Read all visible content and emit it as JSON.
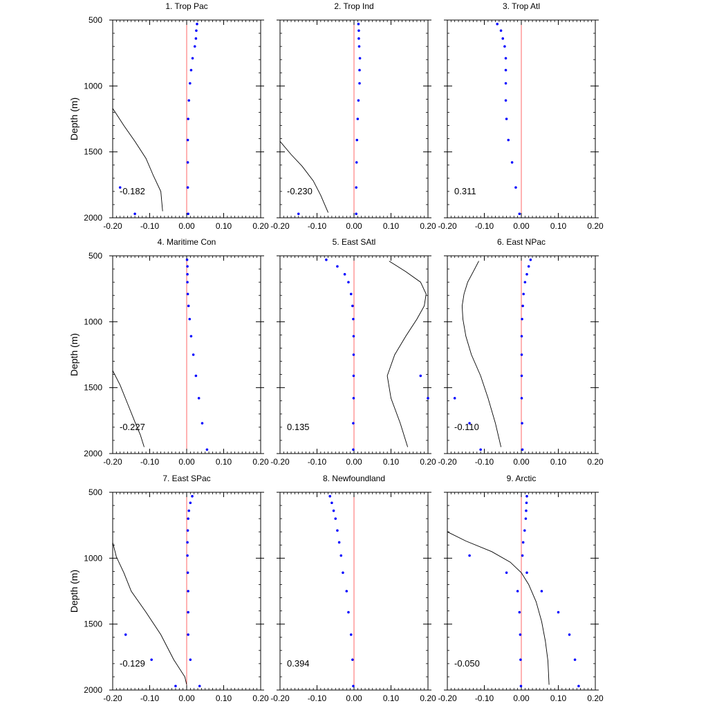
{
  "figure": {
    "ylabel": "Depth (m)",
    "xticks": [
      -0.2,
      -0.1,
      0.0,
      0.1,
      0.2
    ],
    "xtick_labels": [
      "-0.20",
      "-0.10",
      "0.00",
      "0.10",
      "0.20"
    ],
    "yticks": [
      500,
      1000,
      1500,
      2000
    ],
    "ytick_labels": [
      "500",
      "1000",
      "1500",
      "2000"
    ],
    "xlim": [
      -0.2,
      0.2
    ],
    "ylim": [
      2000,
      500
    ],
    "zero_line_color": "#ff6666",
    "dot_color": "#0000ff",
    "line_color": "#000000"
  },
  "chart_data": [
    {
      "type": "scatter",
      "title": "1. Trop Pac",
      "annotation": "-0.182",
      "xlim": [
        -0.2,
        0.2
      ],
      "ylim": [
        2000,
        500
      ],
      "dots": [
        [
          0.028,
          530
        ],
        [
          0.026,
          580
        ],
        [
          0.025,
          640
        ],
        [
          0.022,
          700
        ],
        [
          0.016,
          790
        ],
        [
          0.012,
          880
        ],
        [
          0.009,
          980
        ],
        [
          0.006,
          1110
        ],
        [
          0.004,
          1250
        ],
        [
          0.003,
          1410
        ],
        [
          0.003,
          1580
        ],
        [
          0.003,
          1770
        ],
        [
          -0.18,
          1770
        ],
        [
          -0.14,
          1970
        ],
        [
          0.004,
          1970
        ]
      ],
      "curve": [
        [
          -0.2,
          1170
        ],
        [
          -0.17,
          1300
        ],
        [
          -0.14,
          1420
        ],
        [
          -0.11,
          1550
        ],
        [
          -0.09,
          1680
        ],
        [
          -0.07,
          1800
        ],
        [
          -0.065,
          1950
        ]
      ]
    },
    {
      "type": "scatter",
      "title": "2. Trop Ind",
      "annotation": "-0.230",
      "xlim": [
        -0.2,
        0.2
      ],
      "ylim": [
        2000,
        500
      ],
      "dots": [
        [
          0.012,
          530
        ],
        [
          0.013,
          580
        ],
        [
          0.013,
          640
        ],
        [
          0.014,
          700
        ],
        [
          0.016,
          790
        ],
        [
          0.015,
          880
        ],
        [
          0.015,
          980
        ],
        [
          0.012,
          1110
        ],
        [
          0.01,
          1250
        ],
        [
          0.008,
          1410
        ],
        [
          0.007,
          1580
        ],
        [
          0.006,
          1770
        ],
        [
          -0.15,
          1970
        ],
        [
          0.006,
          1970
        ]
      ],
      "curve": [
        [
          -0.2,
          1420
        ],
        [
          -0.17,
          1520
        ],
        [
          -0.14,
          1610
        ],
        [
          -0.11,
          1720
        ],
        [
          -0.09,
          1830
        ],
        [
          -0.07,
          1960
        ]
      ]
    },
    {
      "type": "scatter",
      "title": "3. Trop Atl",
      "annotation": "0.311",
      "xlim": [
        -0.2,
        0.2
      ],
      "ylim": [
        2000,
        500
      ],
      "dots": [
        [
          -0.065,
          530
        ],
        [
          -0.055,
          580
        ],
        [
          -0.05,
          640
        ],
        [
          -0.045,
          700
        ],
        [
          -0.042,
          790
        ],
        [
          -0.042,
          880
        ],
        [
          -0.042,
          980
        ],
        [
          -0.042,
          1110
        ],
        [
          -0.04,
          1250
        ],
        [
          -0.035,
          1410
        ],
        [
          -0.025,
          1580
        ],
        [
          -0.015,
          1770
        ],
        [
          -0.005,
          1970
        ]
      ],
      "curve": []
    },
    {
      "type": "scatter",
      "title": "4. Maritime Con",
      "annotation": "-0.227",
      "xlim": [
        -0.2,
        0.2
      ],
      "ylim": [
        2000,
        500
      ],
      "dots": [
        [
          0.001,
          530
        ],
        [
          0.002,
          580
        ],
        [
          0.002,
          640
        ],
        [
          0.002,
          700
        ],
        [
          0.003,
          790
        ],
        [
          0.005,
          880
        ],
        [
          0.008,
          980
        ],
        [
          0.012,
          1110
        ],
        [
          0.018,
          1250
        ],
        [
          0.025,
          1410
        ],
        [
          0.033,
          1580
        ],
        [
          0.042,
          1770
        ],
        [
          0.055,
          1970
        ]
      ],
      "curve": [
        [
          -0.2,
          1370
        ],
        [
          -0.18,
          1480
        ],
        [
          -0.16,
          1620
        ],
        [
          -0.14,
          1760
        ],
        [
          -0.125,
          1860
        ],
        [
          -0.115,
          1950
        ]
      ]
    },
    {
      "type": "scatter",
      "title": "5. East SAtl",
      "annotation": "0.135",
      "xlim": [
        -0.2,
        0.2
      ],
      "ylim": [
        2000,
        500
      ],
      "dots": [
        [
          -0.075,
          530
        ],
        [
          -0.045,
          580
        ],
        [
          -0.025,
          640
        ],
        [
          -0.015,
          700
        ],
        [
          -0.008,
          790
        ],
        [
          -0.004,
          880
        ],
        [
          -0.002,
          980
        ],
        [
          -0.001,
          1110
        ],
        [
          -0.001,
          1250
        ],
        [
          -0.001,
          1410
        ],
        [
          0.18,
          1410
        ],
        [
          -0.001,
          1580
        ],
        [
          0.2,
          1580
        ],
        [
          -0.002,
          1770
        ],
        [
          -0.002,
          1970
        ]
      ],
      "curve": [
        [
          0.095,
          540
        ],
        [
          0.14,
          620
        ],
        [
          0.18,
          700
        ],
        [
          0.195,
          790
        ],
        [
          0.19,
          880
        ],
        [
          0.17,
          980
        ],
        [
          0.14,
          1110
        ],
        [
          0.11,
          1250
        ],
        [
          0.09,
          1410
        ],
        [
          0.1,
          1580
        ],
        [
          0.125,
          1770
        ],
        [
          0.145,
          1950
        ]
      ]
    },
    {
      "type": "scatter",
      "title": "6. East NPac",
      "annotation": "-0.110",
      "xlim": [
        -0.2,
        0.2
      ],
      "ylim": [
        2000,
        500
      ],
      "dots": [
        [
          0.025,
          530
        ],
        [
          0.02,
          580
        ],
        [
          0.015,
          640
        ],
        [
          0.01,
          700
        ],
        [
          0.006,
          790
        ],
        [
          0.004,
          880
        ],
        [
          0.002,
          980
        ],
        [
          0.001,
          1110
        ],
        [
          0.001,
          1250
        ],
        [
          0.001,
          1410
        ],
        [
          -0.18,
          1580
        ],
        [
          0.001,
          1580
        ],
        [
          -0.14,
          1770
        ],
        [
          0.002,
          1770
        ],
        [
          -0.11,
          1970
        ],
        [
          0.003,
          1970
        ]
      ],
      "curve": [
        [
          -0.115,
          540
        ],
        [
          -0.13,
          620
        ],
        [
          -0.145,
          700
        ],
        [
          -0.155,
          790
        ],
        [
          -0.16,
          880
        ],
        [
          -0.158,
          980
        ],
        [
          -0.15,
          1110
        ],
        [
          -0.135,
          1250
        ],
        [
          -0.11,
          1410
        ],
        [
          -0.09,
          1580
        ],
        [
          -0.07,
          1770
        ],
        [
          -0.055,
          1950
        ]
      ]
    },
    {
      "type": "scatter",
      "title": "7. East SPac",
      "annotation": "-0.129",
      "xlim": [
        -0.2,
        0.2
      ],
      "ylim": [
        2000,
        500
      ],
      "dots": [
        [
          0.015,
          530
        ],
        [
          0.01,
          580
        ],
        [
          0.006,
          640
        ],
        [
          0.004,
          700
        ],
        [
          0.003,
          790
        ],
        [
          0.002,
          880
        ],
        [
          0.002,
          980
        ],
        [
          0.003,
          1110
        ],
        [
          0.004,
          1250
        ],
        [
          0.004,
          1410
        ],
        [
          -0.165,
          1580
        ],
        [
          0.004,
          1580
        ],
        [
          -0.095,
          1770
        ],
        [
          0.01,
          1770
        ],
        [
          -0.03,
          1970
        ],
        [
          0.035,
          1970
        ]
      ],
      "curve": [
        [
          -0.2,
          880
        ],
        [
          -0.19,
          990
        ],
        [
          -0.17,
          1110
        ],
        [
          -0.15,
          1250
        ],
        [
          -0.11,
          1410
        ],
        [
          -0.07,
          1580
        ],
        [
          -0.035,
          1770
        ],
        [
          -0.005,
          1900
        ],
        [
          0.0,
          1960
        ]
      ]
    },
    {
      "type": "scatter",
      "title": "8. Newfoundland",
      "annotation": "0.394",
      "xlim": [
        -0.2,
        0.2
      ],
      "ylim": [
        2000,
        500
      ],
      "dots": [
        [
          -0.065,
          530
        ],
        [
          -0.06,
          580
        ],
        [
          -0.055,
          640
        ],
        [
          -0.05,
          700
        ],
        [
          -0.045,
          790
        ],
        [
          -0.04,
          880
        ],
        [
          -0.035,
          980
        ],
        [
          -0.03,
          1110
        ],
        [
          -0.02,
          1250
        ],
        [
          -0.015,
          1410
        ],
        [
          -0.008,
          1580
        ],
        [
          -0.004,
          1770
        ],
        [
          -0.002,
          1970
        ]
      ],
      "curve": []
    },
    {
      "type": "scatter",
      "title": "9. Arctic",
      "annotation": "-0.050",
      "xlim": [
        -0.2,
        0.2
      ],
      "ylim": [
        2000,
        500
      ],
      "dots": [
        [
          0.015,
          530
        ],
        [
          0.014,
          580
        ],
        [
          0.013,
          640
        ],
        [
          0.012,
          700
        ],
        [
          0.009,
          790
        ],
        [
          0.005,
          880
        ],
        [
          -0.14,
          980
        ],
        [
          0.003,
          980
        ],
        [
          -0.04,
          1110
        ],
        [
          0.015,
          1110
        ],
        [
          -0.01,
          1250
        ],
        [
          0.055,
          1250
        ],
        [
          -0.005,
          1410
        ],
        [
          0.1,
          1410
        ],
        [
          -0.003,
          1580
        ],
        [
          0.13,
          1580
        ],
        [
          -0.002,
          1770
        ],
        [
          0.145,
          1770
        ],
        [
          -0.001,
          1970
        ],
        [
          0.155,
          1970
        ]
      ],
      "curve": [
        [
          -0.2,
          800
        ],
        [
          -0.15,
          870
        ],
        [
          -0.08,
          950
        ],
        [
          -0.03,
          1030
        ],
        [
          0.0,
          1110
        ],
        [
          0.02,
          1200
        ],
        [
          0.04,
          1330
        ],
        [
          0.055,
          1480
        ],
        [
          0.065,
          1630
        ],
        [
          0.072,
          1780
        ],
        [
          0.075,
          1960
        ]
      ]
    }
  ]
}
